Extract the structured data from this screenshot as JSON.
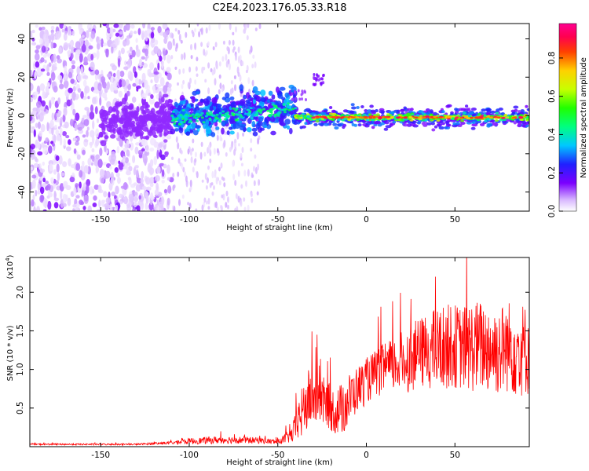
{
  "figure_title": "C2E4.2023.176.05.33.R18",
  "chart_data": [
    {
      "type": "heatmap",
      "xlabel": "Height of straight line (km)",
      "ylabel": "Frequency (Hz)",
      "xlim": [
        -190,
        92
      ],
      "ylim": [
        -50,
        48
      ],
      "xticks": [
        -150,
        -100,
        -50,
        0,
        50
      ],
      "yticks": [
        -40,
        -20,
        0,
        20,
        40
      ],
      "colorbar": {
        "label": "Normalized spectral amplitude",
        "range": [
          0.0,
          0.98
        ],
        "ticks": [
          "0.0",
          "0.2",
          "0.4",
          "0.6",
          "0.8"
        ],
        "colormap": "rainbow (white-purple-blue-cyan-green-yellow-orange-red-pink)"
      },
      "features": [
        {
          "region": "x -190 to -110",
          "freq_spread_hz": [
            -50,
            48
          ],
          "amplitude": [
            0.0,
            0.1
          ]
        },
        {
          "region": "x -110 to -40",
          "center_freq_hz": [
            -3,
            5
          ],
          "amplitude": [
            0.1,
            0.5
          ]
        },
        {
          "region": "x -40 to 90",
          "center_freq_hz": [
            -2,
            0
          ],
          "amplitude": [
            0.4,
            0.95
          ]
        },
        {
          "region": "x -30 to -25",
          "center_freq_hz": 20,
          "amplitude": 0.15
        }
      ],
      "colors": {
        "low": "#e8d7f8",
        "mid": "#3050ff",
        "high": "#ff2020"
      }
    },
    {
      "type": "line",
      "xlabel": "Height of straight line (km)",
      "ylabel": "SNR (10 * v/v)",
      "scale_label": "(x10",
      "scale_exp": "4",
      "scale_close": ")",
      "xlim": [
        -190,
        92
      ],
      "ylim": [
        0,
        2.45
      ],
      "xticks": [
        -150,
        -100,
        -50,
        0,
        50
      ],
      "yticks": [
        "0.5",
        "1.0",
        "1.5",
        "2.0"
      ],
      "series": [
        {
          "color": "#ff0000",
          "x": [
            -190,
            -160,
            -130,
            -110,
            -100,
            -80,
            -60,
            -50,
            -42,
            -38,
            -33,
            -28,
            -22,
            -18,
            -13,
            -10,
            -5,
            0,
            5,
            10,
            15,
            20,
            25,
            30,
            35,
            40,
            45,
            50,
            55,
            60,
            65,
            70,
            75,
            80,
            85,
            90
          ],
          "y": [
            0.03,
            0.03,
            0.03,
            0.05,
            0.07,
            0.09,
            0.08,
            0.06,
            0.15,
            0.35,
            0.6,
            0.65,
            0.55,
            0.45,
            0.5,
            0.6,
            0.75,
            0.85,
            0.95,
            1.0,
            1.05,
            1.1,
            1.15,
            1.2,
            1.25,
            1.25,
            1.3,
            1.3,
            1.28,
            1.3,
            1.3,
            1.28,
            1.25,
            1.3,
            1.28,
            1.25
          ],
          "noise": [
            0.01,
            0.01,
            0.01,
            0.02,
            0.04,
            0.05,
            0.04,
            0.03,
            0.1,
            0.3,
            0.4,
            0.35,
            0.3,
            0.3,
            0.35,
            0.35,
            0.3,
            0.3,
            0.3,
            0.35,
            0.35,
            0.4,
            0.45,
            0.45,
            0.5,
            0.55,
            0.55,
            0.55,
            0.55,
            0.6,
            0.6,
            0.6,
            0.6,
            0.6,
            0.65,
            0.6
          ]
        }
      ]
    }
  ]
}
